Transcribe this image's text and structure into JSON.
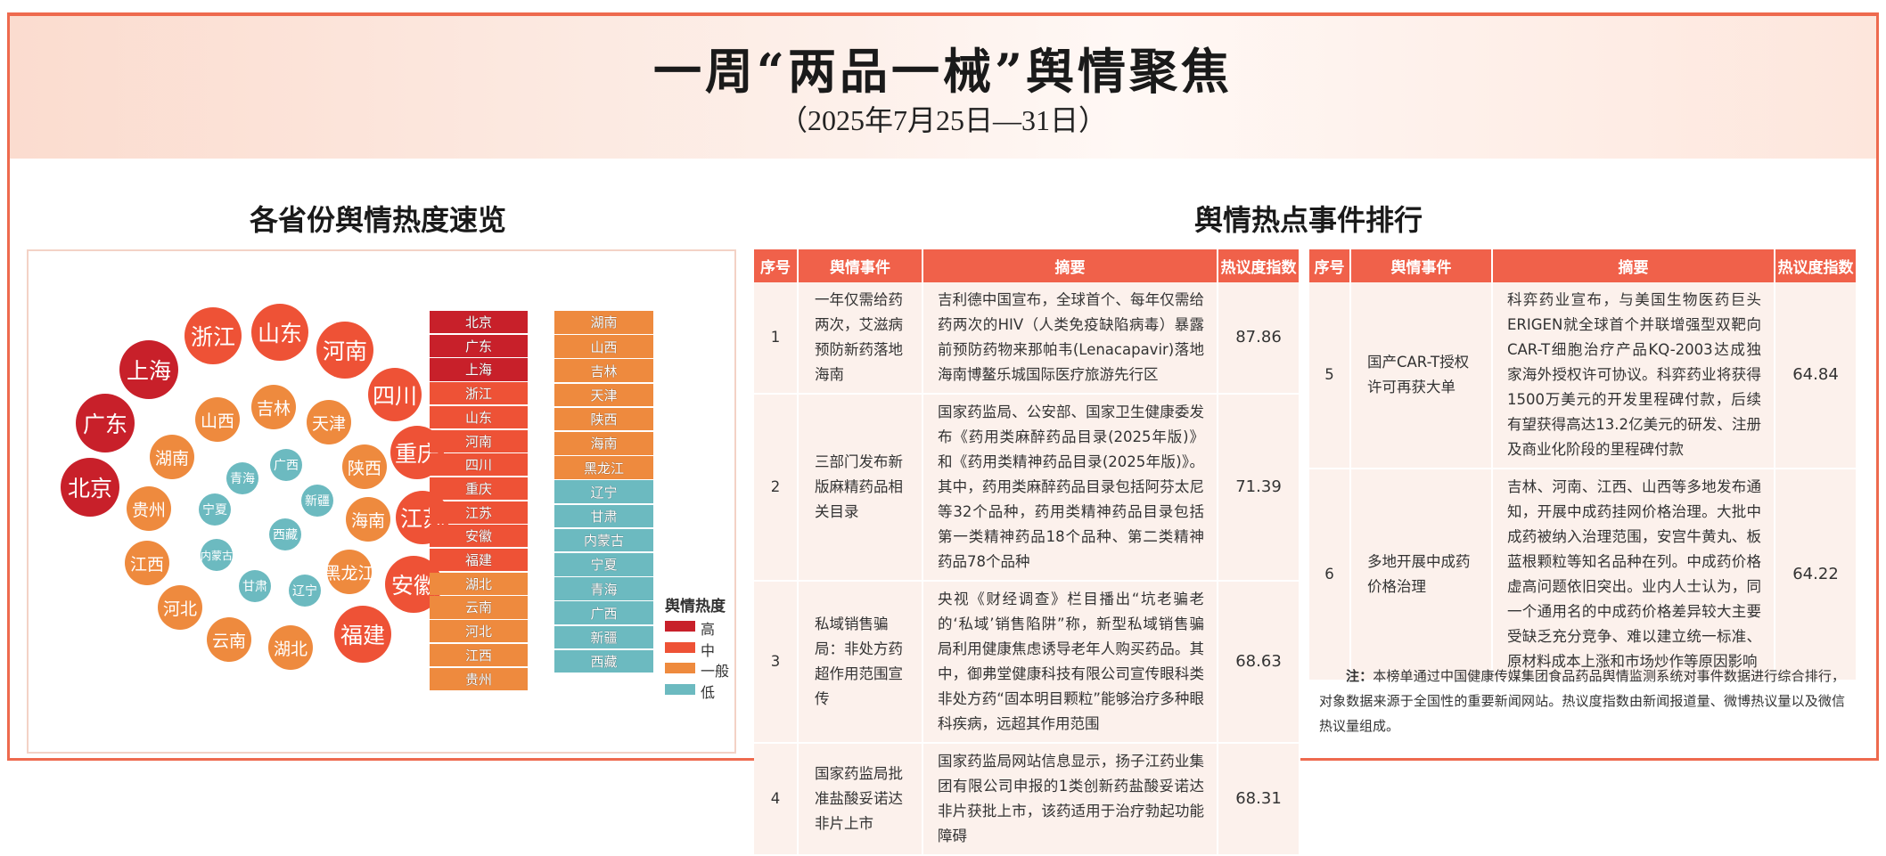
{
  "header": {
    "title": "一周“两品一械”舆情聚焦",
    "subtitle": "（2025年7月25日—31日）"
  },
  "left_section": {
    "title": "各省份舆情热度速览"
  },
  "right_section": {
    "title": "舆情热点事件排行"
  },
  "colors": {
    "high": "#c8202a",
    "mid": "#ee5236",
    "general": "#ee8a3e",
    "low": "#6cbac0"
  },
  "bubbles": [
    {
      "name": "浙江",
      "level": "mid"
    },
    {
      "name": "山东",
      "level": "mid"
    },
    {
      "name": "河南",
      "level": "mid"
    },
    {
      "name": "上海",
      "level": "high"
    },
    {
      "name": "四川",
      "level": "mid"
    },
    {
      "name": "广东",
      "level": "high"
    },
    {
      "name": "山西",
      "level": "general"
    },
    {
      "name": "吉林",
      "level": "general"
    },
    {
      "name": "天津",
      "level": "general"
    },
    {
      "name": "重庆",
      "level": "mid"
    },
    {
      "name": "湖南",
      "level": "general"
    },
    {
      "name": "陕西",
      "level": "general"
    },
    {
      "name": "广西",
      "level": "low"
    },
    {
      "name": "青海",
      "level": "low"
    },
    {
      "name": "北京",
      "level": "high"
    },
    {
      "name": "新疆",
      "level": "low"
    },
    {
      "name": "宁夏",
      "level": "low"
    },
    {
      "name": "贵州",
      "level": "general"
    },
    {
      "name": "海南",
      "level": "general"
    },
    {
      "name": "江苏",
      "level": "mid"
    },
    {
      "name": "西藏",
      "level": "low"
    },
    {
      "name": "内蒙古",
      "level": "low"
    },
    {
      "name": "江西",
      "level": "general"
    },
    {
      "name": "黑龙江",
      "level": "general"
    },
    {
      "name": "安徽",
      "level": "mid"
    },
    {
      "name": "甘肃",
      "level": "low"
    },
    {
      "name": "辽宁",
      "level": "low"
    },
    {
      "name": "河北",
      "level": "general"
    },
    {
      "name": "福建",
      "level": "mid"
    },
    {
      "name": "云南",
      "level": "general"
    },
    {
      "name": "湖北",
      "level": "general"
    }
  ],
  "ranking_left": [
    {
      "name": "北京",
      "level": "high"
    },
    {
      "name": "广东",
      "level": "high"
    },
    {
      "name": "上海",
      "level": "high"
    },
    {
      "name": "浙江",
      "level": "mid"
    },
    {
      "name": "山东",
      "level": "mid"
    },
    {
      "name": "河南",
      "level": "mid"
    },
    {
      "name": "四川",
      "level": "mid"
    },
    {
      "name": "重庆",
      "level": "mid"
    },
    {
      "name": "江苏",
      "level": "mid"
    },
    {
      "name": "安徽",
      "level": "mid"
    },
    {
      "name": "福建",
      "level": "mid"
    },
    {
      "name": "湖北",
      "level": "general"
    },
    {
      "name": "云南",
      "level": "general"
    },
    {
      "name": "河北",
      "level": "general"
    },
    {
      "name": "江西",
      "level": "general"
    },
    {
      "name": "贵州",
      "level": "general"
    }
  ],
  "ranking_right": [
    {
      "name": "湖南",
      "level": "general"
    },
    {
      "name": "山西",
      "level": "general"
    },
    {
      "name": "吉林",
      "level": "general"
    },
    {
      "name": "天津",
      "level": "general"
    },
    {
      "name": "陕西",
      "level": "general"
    },
    {
      "name": "海南",
      "level": "general"
    },
    {
      "name": "黑龙江",
      "level": "general"
    },
    {
      "name": "辽宁",
      "level": "low"
    },
    {
      "name": "甘肃",
      "level": "low"
    },
    {
      "name": "内蒙古",
      "level": "low"
    },
    {
      "name": "宁夏",
      "level": "low"
    },
    {
      "name": "青海",
      "level": "low"
    },
    {
      "name": "广西",
      "level": "low"
    },
    {
      "name": "新疆",
      "level": "low"
    },
    {
      "name": "西藏",
      "level": "low"
    }
  ],
  "legend": {
    "title": "舆情热度",
    "items": [
      {
        "label": "高",
        "level": "high"
      },
      {
        "label": "中",
        "level": "mid"
      },
      {
        "label": "一般",
        "level": "general"
      },
      {
        "label": "低",
        "level": "low"
      }
    ]
  },
  "table": {
    "headers": [
      "序号",
      "舆情事件",
      "摘要",
      "热议度指数"
    ],
    "rows": [
      {
        "no": "1",
        "event": "一年仅需给药两次，艾滋病预防新药落地海南",
        "summary": "吉利德中国宣布，全球首个、每年仅需给药两次的HIV（人类免疫缺陷病毒）暴露前预防药物来那帕韦(Lenacapavir)落地海南博鳌乐城国际医疗旅游先行区",
        "index": "87.86"
      },
      {
        "no": "2",
        "event": "三部门发布新版麻精药品相关目录",
        "summary": "国家药监局、公安部、国家卫生健康委发布《药用类麻醉药品目录(2025年版)》和《药用类精神药品目录(2025年版)》。其中，药用类麻醉药品目录包括阿芬太尼等32个品种，药用类精神药品目录包括第一类精神药品18个品种、第二类精神药品78个品种",
        "index": "71.39"
      },
      {
        "no": "3",
        "event": "私域销售骗局：非处方药超作用范围宣传",
        "summary": "央视《财经调查》栏目播出“坑老骗老的‘私域’销售陷阱”称，新型私域销售骗局利用健康焦虑诱导老年人购买药品。其中，御弗堂健康科技有限公司宣传眼科类非处方药“固本明目颗粒”能够治疗多种眼科疾病，远超其作用范围",
        "index": "68.63"
      },
      {
        "no": "4",
        "event": "国家药监局批准盐酸妥诺达非片上市",
        "summary": "国家药监局网站信息显示，扬子江药业集团有限公司申报的1类创新药盐酸妥诺达非片获批上市，该药适用于治疗勃起功能障碍",
        "index": "68.31"
      },
      {
        "no": "5",
        "event": "国产CAR-T授权许可再获大单",
        "summary": "科弈药业宣布，与美国生物医药巨头ERIGEN就全球首个并联增强型双靶向CAR-T细胞治疗产品KQ-2003达成独家海外授权许可协议。科弈药业将获得1500万美元的开发里程碑付款，后续有望获得高达13.2亿美元的研发、注册及商业化阶段的里程碑付款",
        "index": "64.84"
      },
      {
        "no": "6",
        "event": "多地开展中成药价格治理",
        "summary": "吉林、河南、江西、山西等多地发布通知，开展中成药挂网价格治理。大批中成药被纳入治理范围，安宫牛黄丸、板蓝根颗粒等知名品种在列。中成药价格虚高问题依旧突出。业内人士认为，同一个通用名的中成药价格差异较大主要受缺乏充分竞争、难以建立统一标准、原材料成本上涨和市场炒作等原因影响",
        "index": "64.22"
      }
    ]
  },
  "note": {
    "label": "注：",
    "text": "本榜单通过中国健康传媒集团食品药品舆情监测系统对事件数据进行综合排行，对象数据来源于全国性的重要新闻网站。热议度指数由新闻报道量、微博热议量以及微信热议量组成。"
  }
}
